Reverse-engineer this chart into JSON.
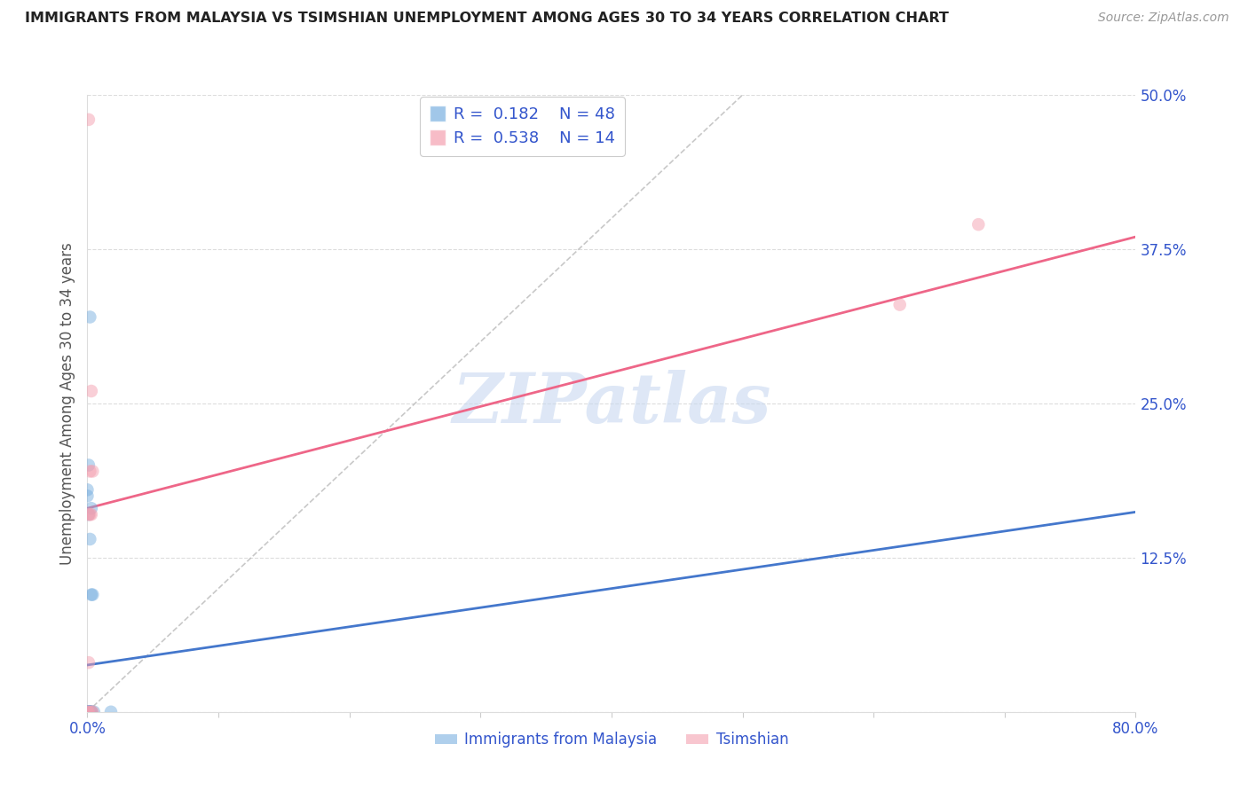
{
  "title": "IMMIGRANTS FROM MALAYSIA VS TSIMSHIAN UNEMPLOYMENT AMONG AGES 30 TO 34 YEARS CORRELATION CHART",
  "source": "Source: ZipAtlas.com",
  "ylabel": "Unemployment Among Ages 30 to 34 years",
  "xlim": [
    0,
    0.8
  ],
  "ylim": [
    0,
    0.5
  ],
  "xticks": [
    0.0,
    0.1,
    0.2,
    0.3,
    0.4,
    0.5,
    0.6,
    0.7,
    0.8
  ],
  "yticks": [
    0.0,
    0.125,
    0.25,
    0.375,
    0.5
  ],
  "ytick_labels": [
    "",
    "12.5%",
    "25.0%",
    "37.5%",
    "50.0%"
  ],
  "xtick_labels": [
    "0.0%",
    "",
    "",
    "",
    "",
    "",
    "",
    "",
    "80.0%"
  ],
  "grid_color": "#dddddd",
  "background_color": "#ffffff",
  "watermark": "ZIPatlas",
  "watermark_color": "#c8d8f0",
  "legend_R1_val": "0.182",
  "legend_N1_val": "48",
  "legend_R2_val": "0.538",
  "legend_N2_val": "14",
  "blue_color": "#7ab0e0",
  "pink_color": "#f4a0b0",
  "blue_line_color": "#4477cc",
  "pink_line_color": "#ee6688",
  "ref_line_color": "#bbbbbb",
  "label_color": "#3355cc",
  "malaysia_label": "Immigrants from Malaysia",
  "tsimshian_label": "Tsimshian",
  "blue_points_x": [
    0.002,
    0.003,
    0.004,
    0.005,
    0.002,
    0.001,
    0.003,
    0.002,
    0.001,
    0.0,
    0.003,
    0.002,
    0.001,
    0.0,
    0.003,
    0.002,
    0.001,
    0.0,
    0.003,
    0.002,
    0.001,
    0.0,
    0.003,
    0.002,
    0.001,
    0.0,
    0.001,
    0.0,
    0.0,
    0.001,
    0.0,
    0.0,
    0.0,
    0.001,
    0.0,
    0.0,
    0.0,
    0.0,
    0.0,
    0.0,
    0.018,
    0.0,
    0.0,
    0.0,
    0.0,
    0.0,
    0.0,
    0.0
  ],
  "blue_points_y": [
    0.32,
    0.095,
    0.095,
    0.0,
    0.0,
    0.0,
    0.0,
    0.0,
    0.0,
    0.0,
    0.165,
    0.14,
    0.16,
    0.175,
    0.0,
    0.0,
    0.2,
    0.18,
    0.0,
    0.0,
    0.0,
    0.0,
    0.0,
    0.0,
    0.0,
    0.0,
    0.0,
    0.0,
    0.0,
    0.0,
    0.0,
    0.0,
    0.0,
    0.0,
    0.0,
    0.0,
    0.0,
    0.0,
    0.0,
    0.0,
    0.0,
    0.0,
    0.0,
    0.0,
    0.0,
    0.0,
    0.0,
    0.0
  ],
  "pink_points_x": [
    0.001,
    0.003,
    0.004,
    0.002,
    0.001,
    0.003,
    0.002,
    0.001,
    0.0,
    0.003,
    0.001,
    0.68,
    0.62,
    0.004
  ],
  "pink_points_y": [
    0.48,
    0.26,
    0.195,
    0.195,
    0.16,
    0.16,
    0.16,
    0.0,
    0.0,
    0.0,
    0.04,
    0.395,
    0.33,
    0.0
  ],
  "blue_trend_y_intercept": 0.038,
  "blue_trend_slope": 0.155,
  "pink_trend_y_intercept": 0.165,
  "pink_trend_slope": 0.275,
  "ref_line_x": [
    0.0,
    0.5
  ],
  "ref_line_y": [
    0.0,
    0.5
  ]
}
